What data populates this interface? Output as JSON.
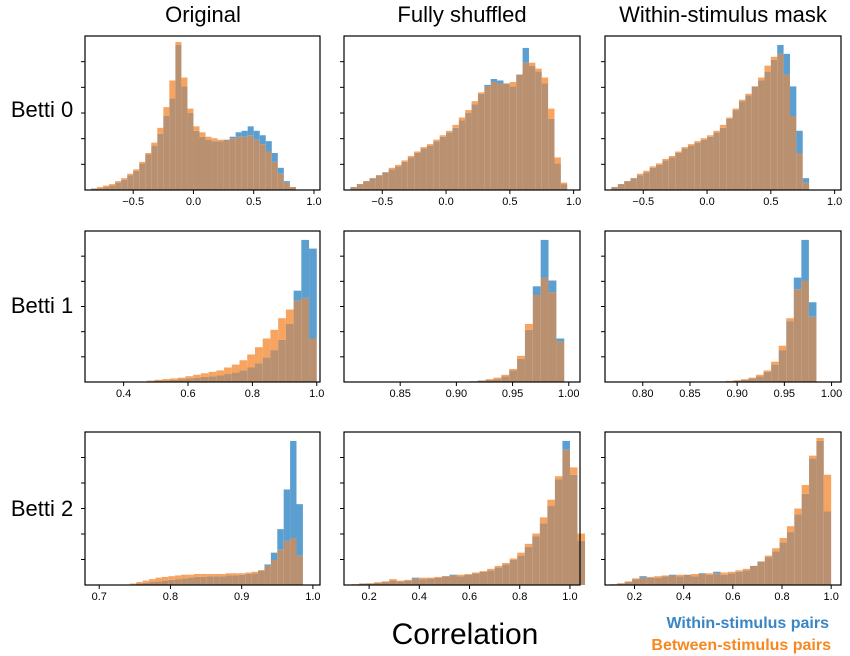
{
  "columns": [
    "Original",
    "Fully shuffled",
    "Within-stimulus mask"
  ],
  "rows": [
    "Betti 0",
    "Betti 1",
    "Betti 2"
  ],
  "xlabel": "Correlation",
  "legend": {
    "within": {
      "label": "Within-stimulus pairs",
      "color": "#3a85c4"
    },
    "between": {
      "label": "Between-stimulus pairs",
      "color": "#f7871f"
    }
  },
  "colors": {
    "within_fill": "#5b9fd1",
    "between_fill": "#f7a460",
    "overlap_fill": "#b99070"
  },
  "chart_data": [
    {
      "type": "histogram",
      "row": "Betti 0",
      "column": "Original",
      "xlim": [
        -0.9,
        1.05
      ],
      "xticks": [
        -0.5,
        0.0,
        0.5,
        1.0
      ],
      "xtick_labels": [
        "−0.5",
        "0.0",
        "0.5",
        "1.0"
      ],
      "bin_start": -0.85,
      "bin_width": 0.05,
      "series": [
        {
          "name": "Within-stimulus pairs",
          "values": [
            0.01,
            0.01,
            0.02,
            0.03,
            0.05,
            0.07,
            0.1,
            0.13,
            0.18,
            0.24,
            0.3,
            0.38,
            0.5,
            0.62,
            0.98,
            0.7,
            0.52,
            0.4,
            0.36,
            0.34,
            0.33,
            0.33,
            0.34,
            0.36,
            0.39,
            0.4,
            0.43,
            0.4,
            0.37,
            0.33,
            0.25,
            0.15,
            0.06,
            0.02
          ]
        },
        {
          "name": "Between-stimulus pairs",
          "values": [
            0.01,
            0.02,
            0.03,
            0.04,
            0.06,
            0.08,
            0.11,
            0.14,
            0.19,
            0.25,
            0.32,
            0.42,
            0.56,
            0.74,
            1.0,
            0.76,
            0.55,
            0.43,
            0.39,
            0.36,
            0.35,
            0.34,
            0.34,
            0.35,
            0.36,
            0.36,
            0.37,
            0.34,
            0.31,
            0.26,
            0.19,
            0.11,
            0.05,
            0.02
          ]
        }
      ]
    },
    {
      "type": "histogram",
      "row": "Betti 0",
      "column": "Fully shuffled",
      "xlim": [
        -0.8,
        1.05
      ],
      "xticks": [
        -0.5,
        0.0,
        0.5,
        1.0
      ],
      "xtick_labels": [
        "−0.5",
        "0.0",
        "0.5",
        "1.0"
      ],
      "bin_start": -0.75,
      "bin_width": 0.05,
      "series": [
        {
          "name": "Within-stimulus pairs",
          "values": [
            0.02,
            0.04,
            0.06,
            0.08,
            0.1,
            0.12,
            0.14,
            0.16,
            0.19,
            0.22,
            0.25,
            0.28,
            0.3,
            0.33,
            0.36,
            0.39,
            0.42,
            0.47,
            0.52,
            0.58,
            0.65,
            0.71,
            0.75,
            0.74,
            0.72,
            0.7,
            0.78,
            0.96,
            0.84,
            0.8,
            0.72,
            0.48,
            0.18,
            0.04
          ]
        },
        {
          "name": "Between-stimulus pairs",
          "values": [
            0.02,
            0.04,
            0.06,
            0.08,
            0.1,
            0.12,
            0.15,
            0.17,
            0.2,
            0.23,
            0.26,
            0.29,
            0.31,
            0.34,
            0.37,
            0.4,
            0.44,
            0.49,
            0.54,
            0.6,
            0.66,
            0.7,
            0.73,
            0.72,
            0.72,
            0.73,
            0.78,
            0.86,
            0.86,
            0.82,
            0.76,
            0.55,
            0.22,
            0.05
          ]
        }
      ]
    },
    {
      "type": "histogram",
      "row": "Betti 0",
      "column": "Within-stimulus mask",
      "xlim": [
        -0.8,
        1.05
      ],
      "xticks": [
        -0.5,
        0.0,
        0.5,
        1.0
      ],
      "xtick_labels": [
        "−0.5",
        "0.0",
        "0.5",
        "1.0"
      ],
      "bin_start": -0.75,
      "bin_width": 0.05,
      "series": [
        {
          "name": "Within-stimulus pairs",
          "values": [
            0.02,
            0.04,
            0.06,
            0.08,
            0.1,
            0.12,
            0.15,
            0.17,
            0.2,
            0.22,
            0.25,
            0.28,
            0.3,
            0.32,
            0.34,
            0.36,
            0.39,
            0.42,
            0.48,
            0.54,
            0.6,
            0.64,
            0.7,
            0.74,
            0.8,
            0.88,
            0.98,
            0.92,
            0.7,
            0.4,
            0.08
          ]
        },
        {
          "name": "Between-stimulus pairs",
          "values": [
            0.02,
            0.04,
            0.06,
            0.08,
            0.11,
            0.13,
            0.16,
            0.18,
            0.21,
            0.23,
            0.26,
            0.29,
            0.31,
            0.33,
            0.35,
            0.37,
            0.4,
            0.44,
            0.49,
            0.55,
            0.61,
            0.65,
            0.7,
            0.76,
            0.84,
            0.9,
            0.92,
            0.78,
            0.5,
            0.25,
            0.05
          ]
        }
      ]
    },
    {
      "type": "histogram",
      "row": "Betti 1",
      "column": "Original",
      "xlim": [
        0.28,
        1.01
      ],
      "xticks": [
        0.4,
        0.6,
        0.8,
        1.0
      ],
      "xtick_labels": [
        "0.4",
        "0.6",
        "0.8",
        "1.0"
      ],
      "bin_start": 0.28,
      "bin_width": 0.024,
      "series": [
        {
          "name": "Within-stimulus pairs",
          "values": [
            0,
            0,
            0,
            0,
            0,
            0,
            0,
            0,
            0.005,
            0.01,
            0.01,
            0.015,
            0.02,
            0.025,
            0.03,
            0.035,
            0.04,
            0.045,
            0.055,
            0.065,
            0.08,
            0.1,
            0.13,
            0.17,
            0.22,
            0.29,
            0.4,
            0.63,
            0.98,
            0.92
          ]
        },
        {
          "name": "Between-stimulus pairs",
          "values": [
            0,
            0,
            0,
            0,
            0,
            0,
            0,
            0,
            0.01,
            0.015,
            0.02,
            0.025,
            0.03,
            0.04,
            0.05,
            0.06,
            0.07,
            0.08,
            0.1,
            0.12,
            0.15,
            0.19,
            0.24,
            0.3,
            0.36,
            0.44,
            0.5,
            0.56,
            0.58,
            0.3
          ]
        }
      ]
    },
    {
      "type": "histogram",
      "row": "Betti 1",
      "column": "Fully shuffled",
      "xlim": [
        0.8,
        1.01
      ],
      "xticks": [
        0.85,
        0.9,
        0.95,
        1.0
      ],
      "xtick_labels": [
        "0.85",
        "0.90",
        "0.95",
        "1.00"
      ],
      "bin_start": 0.8,
      "bin_width": 0.007,
      "series": [
        {
          "name": "Within-stimulus pairs",
          "values": [
            0,
            0,
            0,
            0,
            0,
            0,
            0,
            0,
            0,
            0,
            0,
            0,
            0,
            0,
            0,
            0,
            0.005,
            0.01,
            0.015,
            0.02,
            0.04,
            0.08,
            0.16,
            0.36,
            0.66,
            0.98,
            0.7,
            0.3
          ]
        },
        {
          "name": "Between-stimulus pairs",
          "values": [
            0,
            0,
            0,
            0,
            0,
            0,
            0,
            0,
            0,
            0,
            0,
            0,
            0,
            0,
            0,
            0,
            0.005,
            0.01,
            0.02,
            0.03,
            0.05,
            0.09,
            0.18,
            0.4,
            0.6,
            0.72,
            0.62,
            0.28
          ]
        }
      ]
    },
    {
      "type": "histogram",
      "row": "Betti 1",
      "column": "Within-stimulus mask",
      "xlim": [
        0.76,
        1.01
      ],
      "xticks": [
        0.8,
        0.85,
        0.9,
        0.95,
        1.0
      ],
      "xtick_labels": [
        "0.80",
        "0.85",
        "0.90",
        "0.95",
        "1.00"
      ],
      "bin_start": 0.76,
      "bin_width": 0.008,
      "series": [
        {
          "name": "Within-stimulus pairs",
          "values": [
            0,
            0,
            0,
            0,
            0,
            0,
            0,
            0,
            0,
            0,
            0,
            0,
            0,
            0,
            0,
            0.003,
            0.006,
            0.01,
            0.015,
            0.025,
            0.04,
            0.07,
            0.12,
            0.22,
            0.42,
            0.72,
            0.98,
            0.55
          ]
        },
        {
          "name": "Between-stimulus pairs",
          "values": [
            0,
            0,
            0,
            0,
            0,
            0,
            0,
            0,
            0,
            0,
            0,
            0,
            0,
            0,
            0,
            0.004,
            0.008,
            0.012,
            0.02,
            0.03,
            0.05,
            0.08,
            0.14,
            0.25,
            0.44,
            0.64,
            0.7,
            0.45
          ]
        }
      ]
    },
    {
      "type": "histogram",
      "row": "Betti 2",
      "column": "Original",
      "xlim": [
        0.68,
        1.01
      ],
      "xticks": [
        0.7,
        0.8,
        0.9,
        1.0
      ],
      "xtick_labels": [
        "0.7",
        "0.8",
        "0.9",
        "1.0"
      ],
      "bin_start": 0.68,
      "bin_width": 0.009,
      "series": [
        {
          "name": "Within-stimulus pairs",
          "values": [
            0,
            0,
            0,
            0,
            0,
            0,
            0,
            0.005,
            0.01,
            0.015,
            0.02,
            0.025,
            0.03,
            0.035,
            0.04,
            0.045,
            0.05,
            0.055,
            0.055,
            0.06,
            0.06,
            0.06,
            0.065,
            0.065,
            0.07,
            0.075,
            0.08,
            0.1,
            0.14,
            0.22,
            0.38,
            0.65,
            0.98,
            0.55
          ]
        },
        {
          "name": "Between-stimulus pairs",
          "values": [
            0,
            0,
            0,
            0,
            0,
            0,
            0,
            0.01,
            0.02,
            0.03,
            0.04,
            0.05,
            0.055,
            0.06,
            0.065,
            0.07,
            0.07,
            0.075,
            0.075,
            0.075,
            0.075,
            0.075,
            0.08,
            0.08,
            0.08,
            0.085,
            0.09,
            0.1,
            0.13,
            0.17,
            0.24,
            0.3,
            0.32,
            0.2
          ]
        }
      ]
    },
    {
      "type": "histogram",
      "row": "Betti 2",
      "column": "Fully shuffled",
      "xlim": [
        0.1,
        1.04
      ],
      "xticks": [
        0.2,
        0.4,
        0.6,
        0.8,
        1.0
      ],
      "xtick_labels": [
        "0.2",
        "0.4",
        "0.6",
        "0.8",
        "1.0"
      ],
      "bin_start": 0.1,
      "bin_width": 0.03,
      "series": [
        {
          "name": "Within-stimulus pairs",
          "values": [
            0,
            0.005,
            0.01,
            0.01,
            0.015,
            0.02,
            0.03,
            0.025,
            0.03,
            0.05,
            0.04,
            0.045,
            0.05,
            0.06,
            0.07,
            0.06,
            0.07,
            0.08,
            0.09,
            0.1,
            0.12,
            0.14,
            0.17,
            0.2,
            0.26,
            0.33,
            0.42,
            0.54,
            0.72,
            0.98,
            0.75,
            0.3
          ]
        },
        {
          "name": "Between-stimulus pairs",
          "values": [
            0,
            0.005,
            0.01,
            0.012,
            0.02,
            0.025,
            0.04,
            0.03,
            0.035,
            0.045,
            0.05,
            0.05,
            0.055,
            0.06,
            0.065,
            0.07,
            0.075,
            0.085,
            0.095,
            0.11,
            0.13,
            0.15,
            0.18,
            0.22,
            0.28,
            0.35,
            0.46,
            0.58,
            0.74,
            0.92,
            0.8,
            0.35
          ]
        }
      ]
    },
    {
      "type": "histogram",
      "row": "Betti 2",
      "column": "Within-stimulus mask",
      "xlim": [
        0.08,
        1.04
      ],
      "xticks": [
        0.2,
        0.4,
        0.6,
        0.8,
        1.0
      ],
      "xtick_labels": [
        "0.2",
        "0.4",
        "0.6",
        "0.8",
        "1.0"
      ],
      "bin_start": 0.1,
      "bin_width": 0.03,
      "series": [
        {
          "name": "Within-stimulus pairs",
          "values": [
            0.005,
            0.01,
            0.02,
            0.04,
            0.06,
            0.05,
            0.05,
            0.06,
            0.07,
            0.06,
            0.07,
            0.06,
            0.08,
            0.07,
            0.09,
            0.07,
            0.08,
            0.09,
            0.1,
            0.13,
            0.16,
            0.19,
            0.23,
            0.29,
            0.36,
            0.48,
            0.62,
            0.86,
            0.98,
            0.5
          ]
        },
        {
          "name": "Between-stimulus pairs",
          "values": [
            0.005,
            0.012,
            0.025,
            0.045,
            0.05,
            0.055,
            0.06,
            0.065,
            0.065,
            0.07,
            0.07,
            0.075,
            0.075,
            0.08,
            0.08,
            0.085,
            0.09,
            0.1,
            0.11,
            0.13,
            0.16,
            0.2,
            0.25,
            0.32,
            0.4,
            0.52,
            0.68,
            0.88,
            1.0,
            0.75
          ]
        }
      ]
    }
  ]
}
